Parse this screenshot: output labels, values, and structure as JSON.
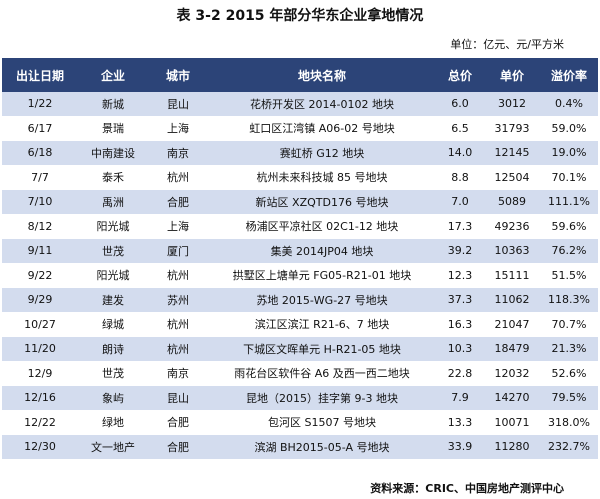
{
  "title": "表 3-2 2015 年部分华东企业拿地情况",
  "unit": "单位：亿元、元/平方米",
  "headers": [
    "出让日期",
    "企业",
    "城市",
    "地块名称",
    "总价",
    "单价",
    "溢价率"
  ],
  "rows": [
    [
      "1/22",
      "新城",
      "昆山",
      "花桥开发区 2014-0102 地块",
      "6.0",
      "3012",
      "0.4%"
    ],
    [
      "6/17",
      "景瑞",
      "上海",
      "虹口区江湾镇 A06-02 号地块",
      "6.5",
      "31793",
      "59.0%"
    ],
    [
      "6/18",
      "中南建设",
      "南京",
      "赛虹桥 G12 地块",
      "14.0",
      "12145",
      "19.0%"
    ],
    [
      "7/7",
      "泰禾",
      "杭州",
      "杭州未来科技城 85 号地块",
      "8.8",
      "12504",
      "70.1%"
    ],
    [
      "7/10",
      "禹洲",
      "合肥",
      "新站区 XZQTD176 号地块",
      "7.0",
      "5089",
      "111.1%"
    ],
    [
      "8/12",
      "阳光城",
      "上海",
      "杨浦区平凉社区 02C1-12 地块",
      "17.3",
      "49236",
      "59.6%"
    ],
    [
      "9/11",
      "世茂",
      "厦门",
      "集美 2014JP04 地块",
      "39.2",
      "10363",
      "76.2%"
    ],
    [
      "9/22",
      "阳光城",
      "杭州",
      "拱墅区上塘单元 FG05-R21-01 地块",
      "12.3",
      "15111",
      "51.5%"
    ],
    [
      "9/29",
      "建发",
      "苏州",
      "苏地 2015-WG-27 号地块",
      "37.3",
      "11062",
      "118.3%"
    ],
    [
      "10/27",
      "绿城",
      "杭州",
      "滨江区滨江 R21-6、7 地块",
      "16.3",
      "21047",
      "70.7%"
    ],
    [
      "11/20",
      "朗诗",
      "杭州",
      "下城区文晖单元 H-R21-05 地块",
      "10.3",
      "18479",
      "21.3%"
    ],
    [
      "12/9",
      "世茂",
      "南京",
      "雨花台区软件谷 A6 及西一西二地块",
      "22.8",
      "12032",
      "52.6%"
    ],
    [
      "12/16",
      "象屿",
      "昆山",
      "昆地（2015）挂字第 9-3 地块",
      "7.9",
      "14270",
      "79.5%"
    ],
    [
      "12/22",
      "绿地",
      "合肥",
      "包河区 S1507 号地块",
      "13.3",
      "10071",
      "318.0%"
    ],
    [
      "12/30",
      "文一地产",
      "合肥",
      "滨湖 BH2015-05-A 号地块",
      "33.9",
      "11280",
      "232.7%"
    ]
  ],
  "source": "资料来源：CRIC、中国房地产测评中心",
  "colors": {
    "header_bg": "#2c4478",
    "stripe": "#d3dcee"
  }
}
